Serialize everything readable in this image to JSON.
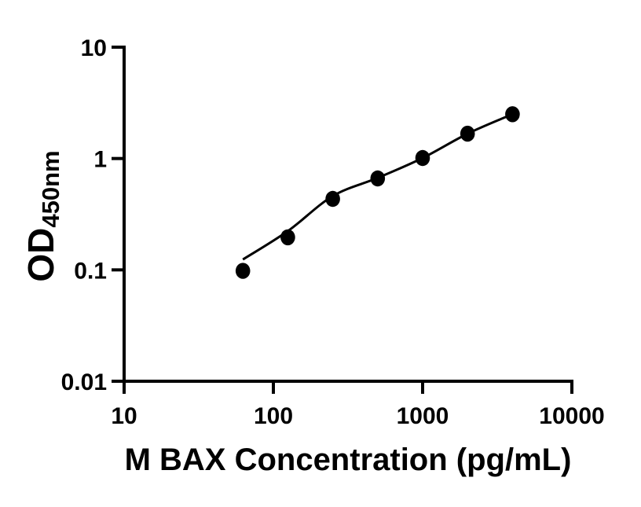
{
  "figure": {
    "background": "#ffffff",
    "ink_color": "#000000"
  },
  "chart_data": {
    "type": "scatter",
    "subtype": "elisa-standard-curve",
    "title": "",
    "xlabel": "M BAX Concentration (pg/mL)",
    "ylabel": "OD450nm",
    "ylabel_main": "OD",
    "ylabel_sub": "450nm",
    "x_scale": "log10",
    "y_scale": "log10",
    "xlim": [
      10,
      10000
    ],
    "ylim": [
      0.01,
      10
    ],
    "x_ticks": [
      10,
      100,
      1000,
      10000
    ],
    "x_tick_labels": [
      "10",
      "100",
      "1000",
      "10000"
    ],
    "y_ticks": [
      10,
      1,
      0.1,
      0.01
    ],
    "y_tick_labels": [
      "10",
      "1",
      "0.1",
      "0.01"
    ],
    "grid": false,
    "legend": false,
    "marker": {
      "shape": "filled-circle",
      "color": "#000000"
    },
    "series": [
      {
        "name": "standard-points",
        "x": [
          62.5,
          125,
          250,
          500,
          1000,
          2000,
          4000
        ],
        "y": [
          0.098,
          0.196,
          0.434,
          0.662,
          1.011,
          1.67,
          2.5
        ]
      }
    ],
    "fit_curve": {
      "name": "fitted-standard-curve",
      "x": [
        62.5,
        125,
        250,
        500,
        1000,
        2000,
        4000
      ],
      "y": [
        0.124,
        0.223,
        0.46,
        0.67,
        1.011,
        1.67,
        2.5
      ]
    }
  }
}
